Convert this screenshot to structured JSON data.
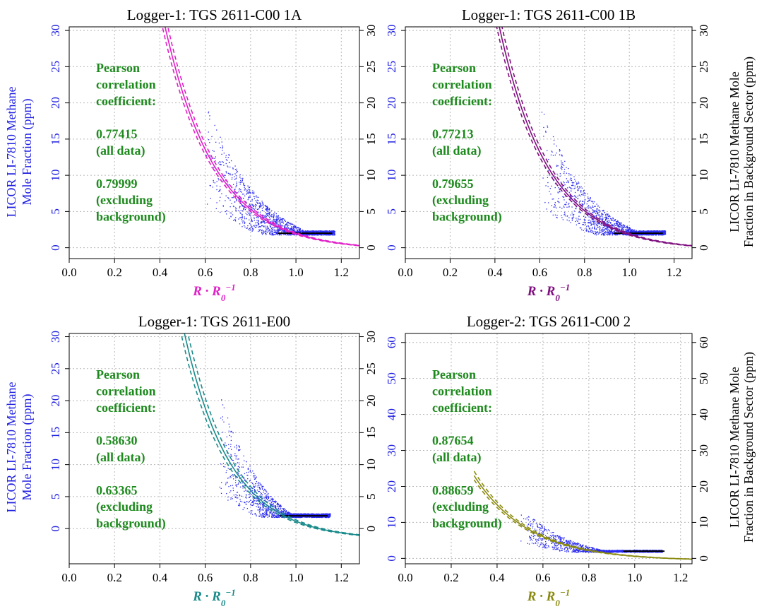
{
  "figure": {
    "left_ylabel": [
      "LICOR LI-7810 Methane",
      "Mole Fraction (ppm)"
    ],
    "right_ylabel": [
      "LICOR LI-7810 Methane Mole",
      "Fraction in Background Sector (ppm)"
    ],
    "colors": {
      "left_axis": "#2020e0",
      "points": "#2a2af0",
      "stats_text": "#1e8a1e",
      "background_line": "#000000",
      "grid": "#b8b8b8"
    }
  },
  "chart_data": [
    {
      "type": "scatter",
      "title": "Logger-1: TGS 2611-C00 1A",
      "xlabel_parts": [
        "R · R",
        "0",
        "−1"
      ],
      "curve_color": "#e020c8",
      "xlim": [
        0.0,
        1.28
      ],
      "ylim": [
        -1.5,
        30.5
      ],
      "xticks": [
        0.0,
        0.2,
        0.4,
        0.6,
        0.8,
        1.0,
        1.2
      ],
      "yticks": [
        0,
        5,
        10,
        15,
        20,
        25,
        30
      ],
      "grid": true,
      "fit_curve": {
        "a": 2.3,
        "b": 4.5,
        "offset": -0.35,
        "band": 0.012
      },
      "background_line": {
        "x": [
          0.92,
          1.16
        ],
        "y": 2.0
      },
      "point_cloud": {
        "x_range": [
          0.6,
          1.17
        ],
        "ymin": 1.8,
        "spread": 0.55
      },
      "stats": [
        "Pearson",
        "correlation",
        "coefficient:",
        "",
        "0.77415",
        "(all data)",
        "",
        "0.79999",
        "(excluding",
        "background)"
      ]
    },
    {
      "type": "scatter",
      "title": "Logger-1: TGS 2611-C00 1B",
      "xlabel_parts": [
        "R · R",
        "0",
        "−1"
      ],
      "curve_color": "#801080",
      "xlim": [
        0.0,
        1.28
      ],
      "ylim": [
        -1.5,
        30.5
      ],
      "xticks": [
        0.0,
        0.2,
        0.4,
        0.6,
        0.8,
        1.0,
        1.2
      ],
      "yticks": [
        0,
        5,
        10,
        15,
        20,
        25,
        30
      ],
      "grid": true,
      "fit_curve": {
        "a": 2.2,
        "b": 4.55,
        "offset": -0.35,
        "band": 0.012
      },
      "background_line": {
        "x": [
          0.93,
          1.15
        ],
        "y": 2.0
      },
      "point_cloud": {
        "x_range": [
          0.6,
          1.16
        ],
        "ymin": 1.8,
        "spread": 0.55
      },
      "stats": [
        "Pearson",
        "correlation",
        "coefficient:",
        "",
        "0.77213",
        "(all data)",
        "",
        "0.79655",
        "(excluding",
        "background)"
      ]
    },
    {
      "type": "scatter",
      "title": "Logger-1: TGS 2611-E00",
      "xlabel_parts": [
        "R · R",
        "0",
        "−1"
      ],
      "curve_color": "#1a8a8a",
      "xlim": [
        0.0,
        1.28
      ],
      "ylim": [
        -5.5,
        30.5
      ],
      "xticks": [
        0.0,
        0.2,
        0.4,
        0.6,
        0.8,
        1.0,
        1.2
      ],
      "yticks": [
        0,
        5,
        10,
        15,
        20,
        25,
        30
      ],
      "grid": true,
      "fit_curve": {
        "a": 2.9,
        "b": 4.9,
        "offset": -1.75,
        "band": 0.015
      },
      "background_line": {
        "x": [
          0.93,
          1.14
        ],
        "y": 2.0
      },
      "point_cloud": {
        "x_range": [
          0.66,
          1.15
        ],
        "ymin": 1.8,
        "spread": 0.6
      },
      "stats": [
        "Pearson",
        "correlation",
        "coefficient:",
        "",
        "0.58630",
        "(all data)",
        "",
        "0.63365",
        "(excluding",
        "background)"
      ]
    },
    {
      "type": "scatter",
      "title": "Logger-2: TGS 2611-C00 2",
      "xlabel_parts": [
        "R · R",
        "0",
        "−1"
      ],
      "curve_color": "#8a8a10",
      "xlim": [
        0.0,
        1.25
      ],
      "ylim": [
        -1.5,
        62.5
      ],
      "xticks": [
        0.0,
        0.2,
        0.4,
        0.6,
        0.8,
        1.0,
        1.2
      ],
      "yticks": [
        0,
        10,
        20,
        30,
        40,
        50,
        60
      ],
      "grid": true,
      "fit_curve": {
        "a": 1.25,
        "b": 4.2,
        "offset": -0.65,
        "band": 0.012
      },
      "background_line": {
        "x": [
          0.95,
          1.13
        ],
        "y": 2.0
      },
      "point_cloud": {
        "x_range": [
          0.5,
          1.12
        ],
        "ymin": 1.8,
        "spread": 0.5
      },
      "stats": [
        "Pearson",
        "correlation",
        "coefficient:",
        "",
        "0.87654",
        "(all data)",
        "",
        "0.88659",
        "(excluding",
        "background)"
      ]
    }
  ]
}
